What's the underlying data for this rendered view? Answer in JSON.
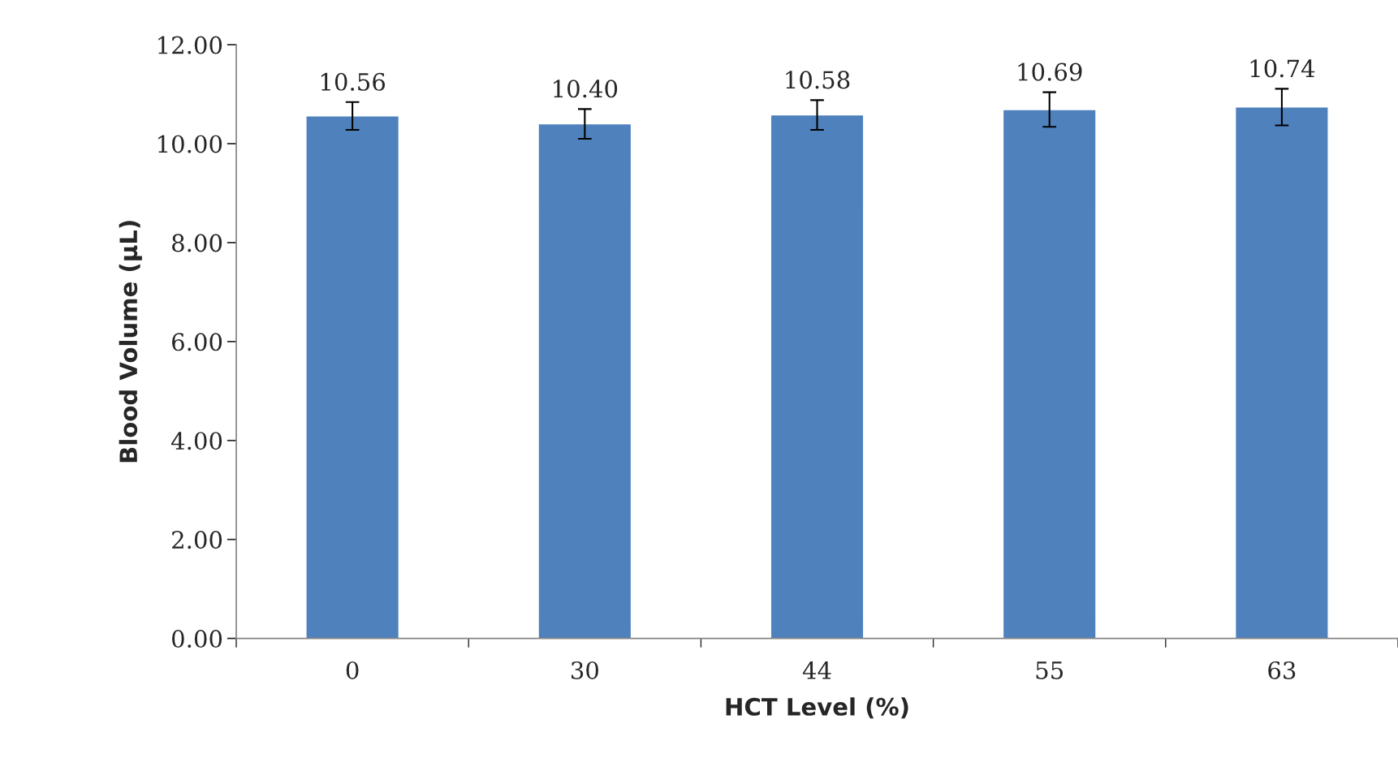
{
  "chart_data": {
    "type": "bar",
    "xlabel": "HCT Level (%)",
    "ylabel": "Blood Volume (µL)",
    "categories": [
      "0",
      "30",
      "44",
      "55",
      "63"
    ],
    "values": [
      10.56,
      10.4,
      10.58,
      10.69,
      10.74
    ],
    "errors": [
      0.28,
      0.3,
      0.3,
      0.35,
      0.37
    ],
    "value_labels": [
      "10.56",
      "10.40",
      "10.58",
      "10.69",
      "10.74"
    ],
    "color": "#4f81bd",
    "ylim": [
      0,
      12
    ],
    "yticks": [
      {
        "value": 0,
        "label": "0.00"
      },
      {
        "value": 2,
        "label": "2.00"
      },
      {
        "value": 4,
        "label": "4.00"
      },
      {
        "value": 6,
        "label": "6.00"
      },
      {
        "value": 8,
        "label": "8.00"
      },
      {
        "value": 10,
        "label": "10.00"
      },
      {
        "value": 12,
        "label": "12.00"
      }
    ],
    "grid": false,
    "legend": false
  }
}
